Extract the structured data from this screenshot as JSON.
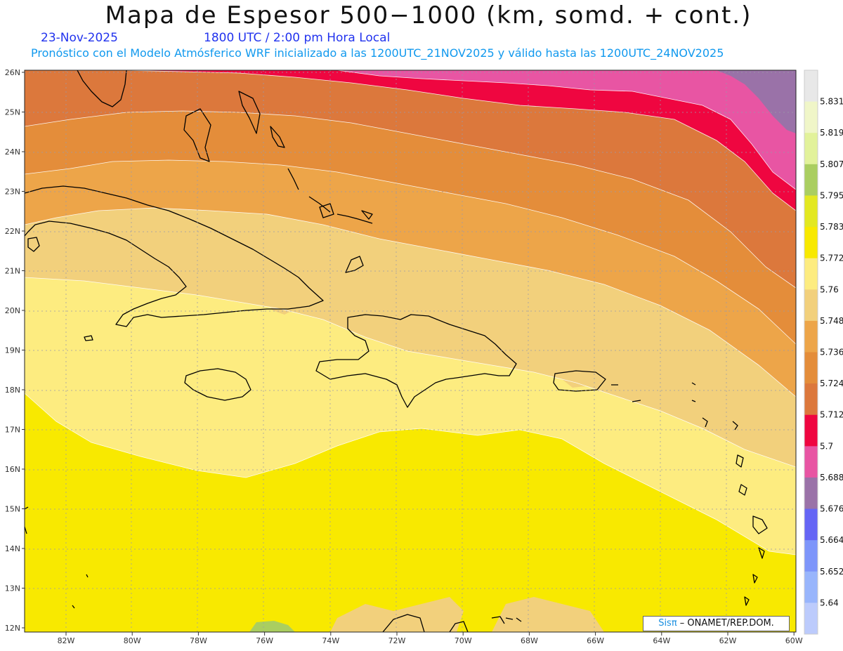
{
  "title": "Mapa de Espesor 500−1000 (km, somd. + cont.)",
  "date": "23-Nov-2025",
  "time": "1800 UTC / 2:00 pm Hora Local",
  "subtitle": "Pronóstico con el Modelo Atmósferico WRF inicializado a las 1200UTC_21NOV2025 y válido hasta las  1200UTC_24NOV2025",
  "credit": {
    "brand": "Sisπ",
    "text": " – ONAMET/REP.DOM."
  },
  "lat_labels": [
    "26N",
    "25N",
    "24N",
    "23N",
    "22N",
    "21N",
    "20N",
    "19N",
    "18N",
    "17N",
    "16N",
    "15N",
    "14N",
    "13N",
    "12N"
  ],
  "lon_labels": [
    "82W",
    "80W",
    "78W",
    "76W",
    "74W",
    "72W",
    "70W",
    "68W",
    "66W",
    "64W",
    "62W",
    "60W"
  ],
  "colorbar": {
    "levels": [
      "5.831",
      "5.819",
      "5.807",
      "5.795",
      "5.783",
      "5.772",
      "5.76",
      "5.748",
      "5.736",
      "5.724",
      "5.712",
      "5.7",
      "5.688",
      "5.676",
      "5.664",
      "5.652",
      "5.64"
    ],
    "colors": [
      "#e8e8e8",
      "#f0f6c8",
      "#e2f29a",
      "#aace60",
      "#e3e821",
      "#f8e900",
      "#fdec80",
      "#f2d07c",
      "#eda549",
      "#e48d3a",
      "#dc783c",
      "#ef0640",
      "#e855a3",
      "#9a72a8",
      "#6565f5",
      "#7d95fa",
      "#98b5fc",
      "#bccbfc"
    ]
  },
  "thickness_bands": [
    {
      "level": "5.688",
      "color": "#9a72a8"
    },
    {
      "level": "5.7",
      "color": "#e855a3"
    },
    {
      "level": "5.712",
      "color": "#ef0640"
    },
    {
      "level": "5.724",
      "color": "#dc783c"
    },
    {
      "level": "5.736",
      "color": "#e48d3a"
    },
    {
      "level": "5.748",
      "color": "#eda549"
    },
    {
      "level": "5.76",
      "color": "#f2d07c"
    },
    {
      "level": "5.772",
      "color": "#fdec80"
    },
    {
      "level": "5.783",
      "color": "#f8e900"
    },
    {
      "level": "5.795",
      "color": "#aace60"
    }
  ]
}
